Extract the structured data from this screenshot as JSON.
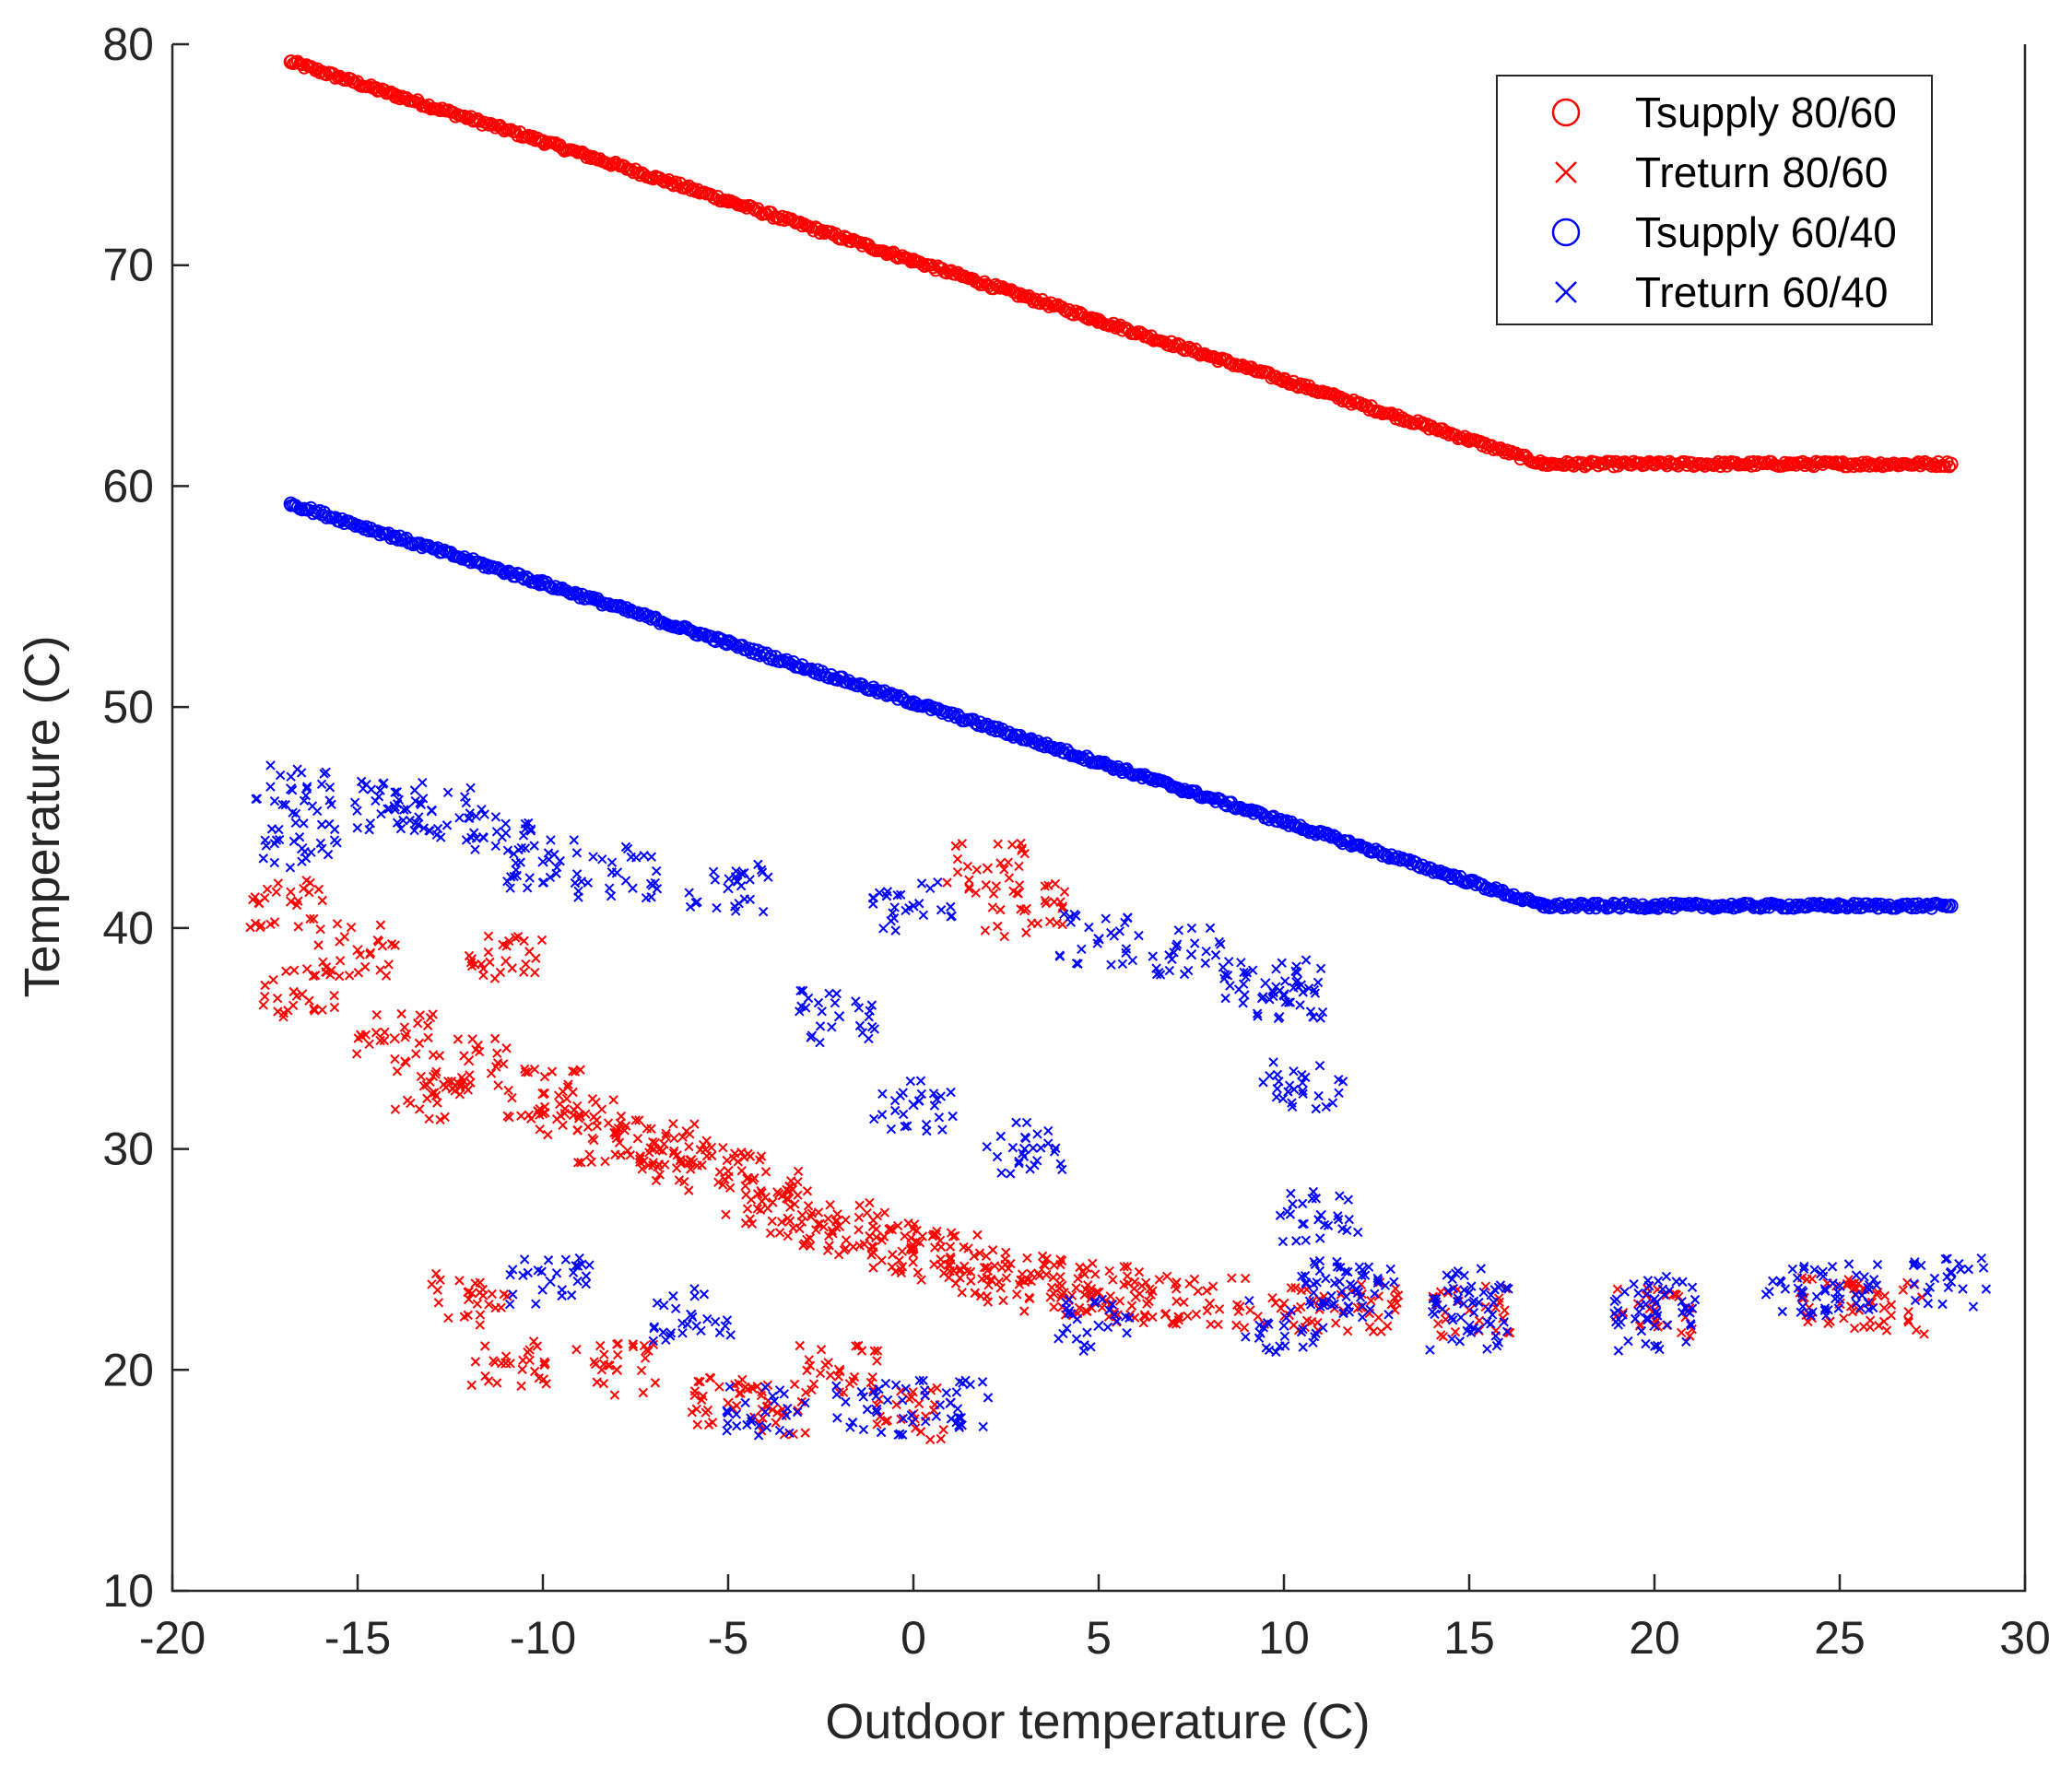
{
  "chart_data": {
    "type": "scatter",
    "title": "",
    "xlabel": "Outdoor temperature (C)",
    "ylabel": "Temperature (C)",
    "xlim": [
      -20,
      30
    ],
    "ylim": [
      10,
      80
    ],
    "xticks": [
      "-20",
      "-15",
      "-10",
      "-5",
      "0",
      "5",
      "10",
      "15",
      "20",
      "25",
      "30"
    ],
    "yticks": [
      "10",
      "20",
      "30",
      "40",
      "50",
      "60",
      "70",
      "80"
    ],
    "grid": false,
    "legend_position": "top-right",
    "series": [
      {
        "name": "Tsupply 80/60",
        "marker": "circle",
        "color": "#ff0000",
        "points": [
          [
            -16.8,
            79.2
          ],
          [
            -14,
            77.7
          ],
          [
            -10,
            75.6
          ],
          [
            -5,
            72.9
          ],
          [
            0,
            70.2
          ],
          [
            5,
            67.5
          ],
          [
            10,
            64.8
          ],
          [
            15,
            62.1
          ],
          [
            17,
            61.0
          ],
          [
            20,
            61.0
          ],
          [
            25,
            61.0
          ],
          [
            28,
            61.0
          ]
        ]
      },
      {
        "name": "Treturn 80/60",
        "marker": "x",
        "color": "#ff0000",
        "points": [
          [
            -16.8,
            41.2
          ],
          [
            -16.5,
            37
          ],
          [
            -15,
            39
          ],
          [
            -14,
            35
          ],
          [
            -13,
            32.5
          ],
          [
            -12,
            34
          ],
          [
            -11,
            38.5
          ],
          [
            -10,
            32.5
          ],
          [
            -9,
            31.5
          ],
          [
            -8,
            30.5
          ],
          [
            -7,
            30
          ],
          [
            -6,
            29.5
          ],
          [
            -5,
            29
          ],
          [
            -4,
            27.8
          ],
          [
            -3,
            27
          ],
          [
            -2,
            26.5
          ],
          [
            -1,
            26
          ],
          [
            0,
            25.5
          ],
          [
            1,
            25
          ],
          [
            2,
            24.5
          ],
          [
            3,
            24
          ],
          [
            4,
            23.8
          ],
          [
            5,
            23.5
          ],
          [
            6,
            23.3
          ],
          [
            8,
            23
          ],
          [
            10,
            23
          ],
          [
            12,
            22.8
          ],
          [
            15,
            22.7
          ],
          [
            20,
            22.7
          ],
          [
            25,
            23
          ],
          [
            26.2,
            22.8
          ],
          [
            -11,
            20.3
          ],
          [
            -8,
            20
          ],
          [
            -5,
            18.5
          ],
          [
            -3.8,
            18.2
          ],
          [
            -2,
            20
          ],
          [
            0,
            18
          ],
          [
            2,
            42.7
          ],
          [
            3,
            40.8
          ],
          [
            -12,
            23.2
          ]
        ]
      },
      {
        "name": "Tsupply 60/40",
        "marker": "circle",
        "color": "#0000ff",
        "points": [
          [
            -16.8,
            59.2
          ],
          [
            -14,
            57.7
          ],
          [
            -10,
            55.6
          ],
          [
            -5,
            52.9
          ],
          [
            0,
            50.2
          ],
          [
            5,
            47.5
          ],
          [
            10,
            44.8
          ],
          [
            15,
            42.1
          ],
          [
            17,
            41.0
          ],
          [
            20,
            41.0
          ],
          [
            25,
            41.0
          ],
          [
            28,
            41.0
          ]
        ]
      },
      {
        "name": "Treturn 60/40",
        "marker": "x",
        "color": "#0000ff",
        "points": [
          [
            -16.8,
            46.3
          ],
          [
            -16.5,
            43.6
          ],
          [
            -14,
            45.5
          ],
          [
            -13,
            45.3
          ],
          [
            -11,
            44.3
          ],
          [
            -10,
            43
          ],
          [
            -8,
            42.5
          ],
          [
            -5,
            41.8
          ],
          [
            0,
            41
          ],
          [
            5,
            39.5
          ],
          [
            7.5,
            38.8
          ],
          [
            9.5,
            37.5
          ],
          [
            10,
            37
          ],
          [
            10.5,
            33
          ],
          [
            11,
            27
          ],
          [
            11.5,
            24
          ],
          [
            12,
            23.5
          ],
          [
            15,
            23.5
          ],
          [
            20,
            23.2
          ],
          [
            24,
            23.5
          ],
          [
            25,
            23.8
          ],
          [
            28,
            24
          ],
          [
            5,
            22
          ],
          [
            10,
            22
          ],
          [
            15,
            22
          ],
          [
            20,
            22
          ],
          [
            0,
            32
          ],
          [
            3,
            30
          ],
          [
            -2,
            36
          ],
          [
            -4,
            18.1
          ],
          [
            -1,
            18.2
          ],
          [
            1,
            18.5
          ],
          [
            -9.8,
            24
          ],
          [
            -6,
            22.5
          ]
        ]
      }
    ]
  }
}
